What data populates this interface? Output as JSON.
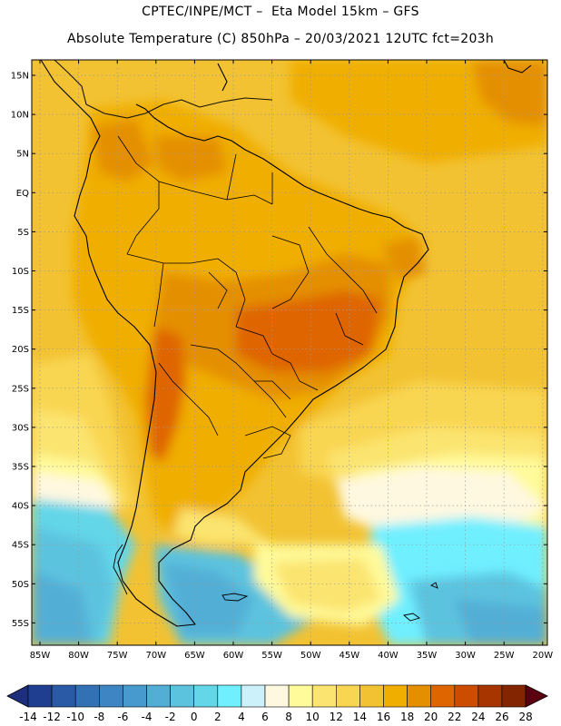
{
  "header": {
    "line1": "CPTEC/INPE/MCT –  Eta Model 15km – GFS",
    "line2": "Absolute Temperature (C) 850hPa – 20/03/2021 12UTC fct=203h"
  },
  "map": {
    "lat_labels": [
      "15N",
      "10N",
      "5N",
      "EQ",
      "5S",
      "10S",
      "15S",
      "20S",
      "25S",
      "30S",
      "35S",
      "40S",
      "45S",
      "50S",
      "55S"
    ],
    "lon_labels": [
      "85W",
      "80W",
      "75W",
      "70W",
      "65W",
      "60W",
      "55W",
      "50W",
      "45W",
      "40W",
      "35W",
      "30W",
      "25W",
      "20W"
    ]
  },
  "colorbar": {
    "labels": [
      "-14",
      "-12",
      "-10",
      "-8",
      "-6",
      "-4",
      "-2",
      "0",
      "2",
      "4",
      "6",
      "8",
      "10",
      "12",
      "14",
      "16",
      "18",
      "20",
      "22",
      "24",
      "26",
      "28"
    ],
    "colors": [
      "#1f3e8f",
      "#2a5aa6",
      "#3371b5",
      "#3d86c3",
      "#469acd",
      "#53aed6",
      "#5cc3df",
      "#63d6e8",
      "#6fefff",
      "#cdf1fb",
      "#fff8e0",
      "#fffa9a",
      "#fbe46f",
      "#f9d651",
      "#f2c232",
      "#f0ae00",
      "#e48f00",
      "#df6500",
      "#cc4c00",
      "#a63500",
      "#832600"
    ],
    "left_arrow_color": "#1d2f7c",
    "right_arrow_color": "#5b0010"
  }
}
